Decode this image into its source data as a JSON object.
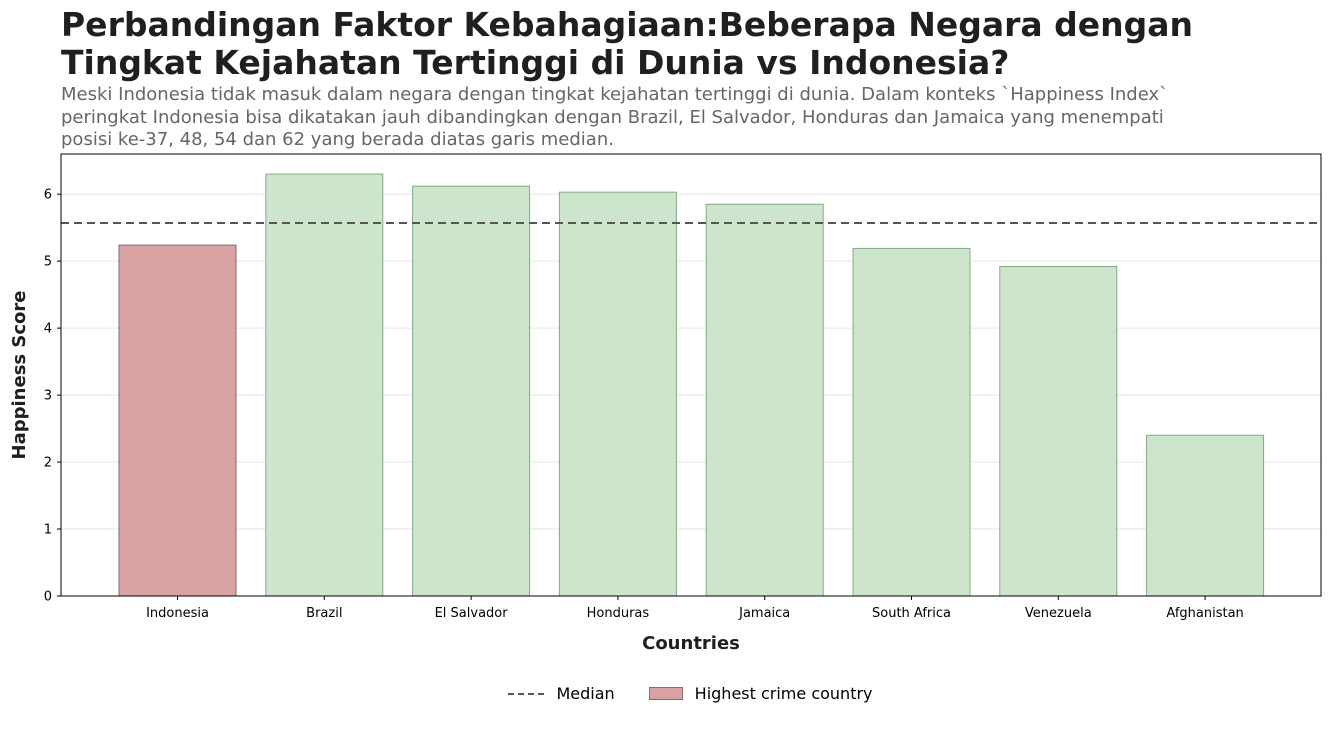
{
  "title": "Perbandingan Faktor Kebahagiaan:Beberapa Negara dengan Tingkat Kejahatan Tertinggi di Dunia vs Indonesia?",
  "subtitle": "Meski Indonesia tidak masuk dalam negara dengan tingkat kejahatan tertinggi di dunia. Dalam konteks `Happiness Index` peringkat Indonesia bisa dikatakan jauh dibandingkan dengan Brazil, El Salvador, Honduras dan Jamaica yang menempati posisi ke-37, 48, 54 dan 62 yang berada diatas garis median.",
  "chart_data": {
    "type": "bar",
    "title": "Perbandingan Faktor Kebahagiaan:Beberapa Negara dengan Tingkat Kejahatan Tertinggi di Dunia vs Indonesia?",
    "xlabel": "Countries",
    "ylabel": "Happiness Score",
    "categories": [
      "Indonesia",
      "Brazil",
      "El Salvador",
      "Honduras",
      "Jamaica",
      "South Africa",
      "Venezuela",
      "Afghanistan"
    ],
    "values": [
      5.24,
      6.3,
      6.12,
      6.03,
      5.85,
      5.19,
      4.92,
      2.4
    ],
    "highlight": [
      true,
      false,
      false,
      false,
      false,
      false,
      false,
      false
    ],
    "median": 5.57,
    "ylim": [
      0,
      6.6
    ],
    "yticks": [
      0,
      1,
      2,
      3,
      4,
      5,
      6
    ],
    "grid": true,
    "legend_position": "bottom-center",
    "colors": {
      "highlight_fill": "#d9a3a3",
      "highlight_edge": "#8a6a6a",
      "bar_fill": "#cde5cd",
      "bar_edge": "#84aa84",
      "median_line": "#555555",
      "grid": "#e6e6e6"
    },
    "legend": [
      {
        "label": "Median",
        "kind": "dashed-line"
      },
      {
        "label": "Highest crime country",
        "kind": "swatch"
      }
    ]
  }
}
